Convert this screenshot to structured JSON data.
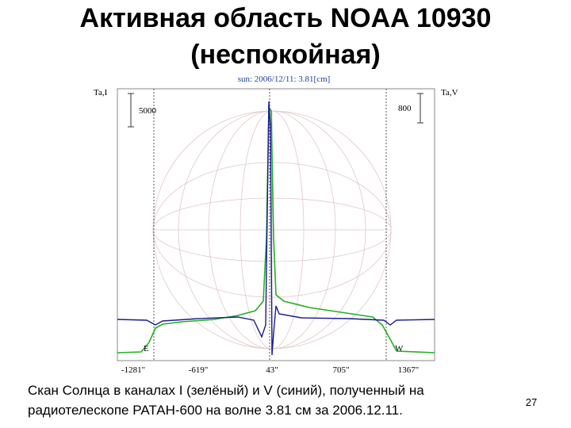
{
  "slide": {
    "title": [
      "Активная область NOAA 10930",
      "(неспокойная)"
    ],
    "figure": {
      "header": "sun: 2006/12/11: 3.81[cm]",
      "left_axis_label": "Ta,I",
      "right_axis_label": "Ta,V",
      "left_scale": "5000",
      "right_scale": "800",
      "x_tick_labels": [
        "-1281\"",
        "-619\"",
        "43\"",
        "705\"",
        "1367\""
      ],
      "east_label": "E",
      "west_label": "W"
    },
    "caption": [
      "Скан Солнца в каналах I (зелёный) и V (синий), полученный на",
      "радиотелескопе РАТАН-600 на волне 3.81 см за 2006.12.11."
    ],
    "page_number": "27"
  }
}
